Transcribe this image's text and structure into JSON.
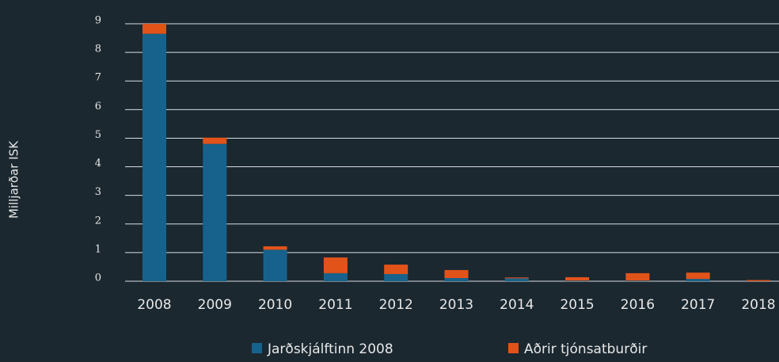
{
  "chart_data": {
    "type": "stacked_bar",
    "y_label": "Milljarðar ISK",
    "categories": [
      "2008",
      "2009",
      "2010",
      "2011",
      "2012",
      "2013",
      "2014",
      "2015",
      "2016",
      "2017",
      "2018"
    ],
    "series": [
      {
        "name": "Jarðskjálftinn 2008",
        "color": "#17628c",
        "values": [
          8.65,
          4.8,
          1.1,
          0.28,
          0.25,
          0.11,
          0.1,
          0.02,
          0.02,
          0.08,
          0
        ]
      },
      {
        "name": "Aðrir tjónsatburðir",
        "color": "#e2531a",
        "values": [
          0.35,
          0.22,
          0.12,
          0.55,
          0.33,
          0.28,
          0.03,
          0.12,
          0.26,
          0.22,
          0.04
        ]
      }
    ],
    "ylim": [
      0,
      9
    ],
    "yticks": [
      0,
      1,
      2,
      3,
      4,
      5,
      6,
      7,
      8,
      9
    ],
    "grid": true,
    "legend": "bottom"
  }
}
